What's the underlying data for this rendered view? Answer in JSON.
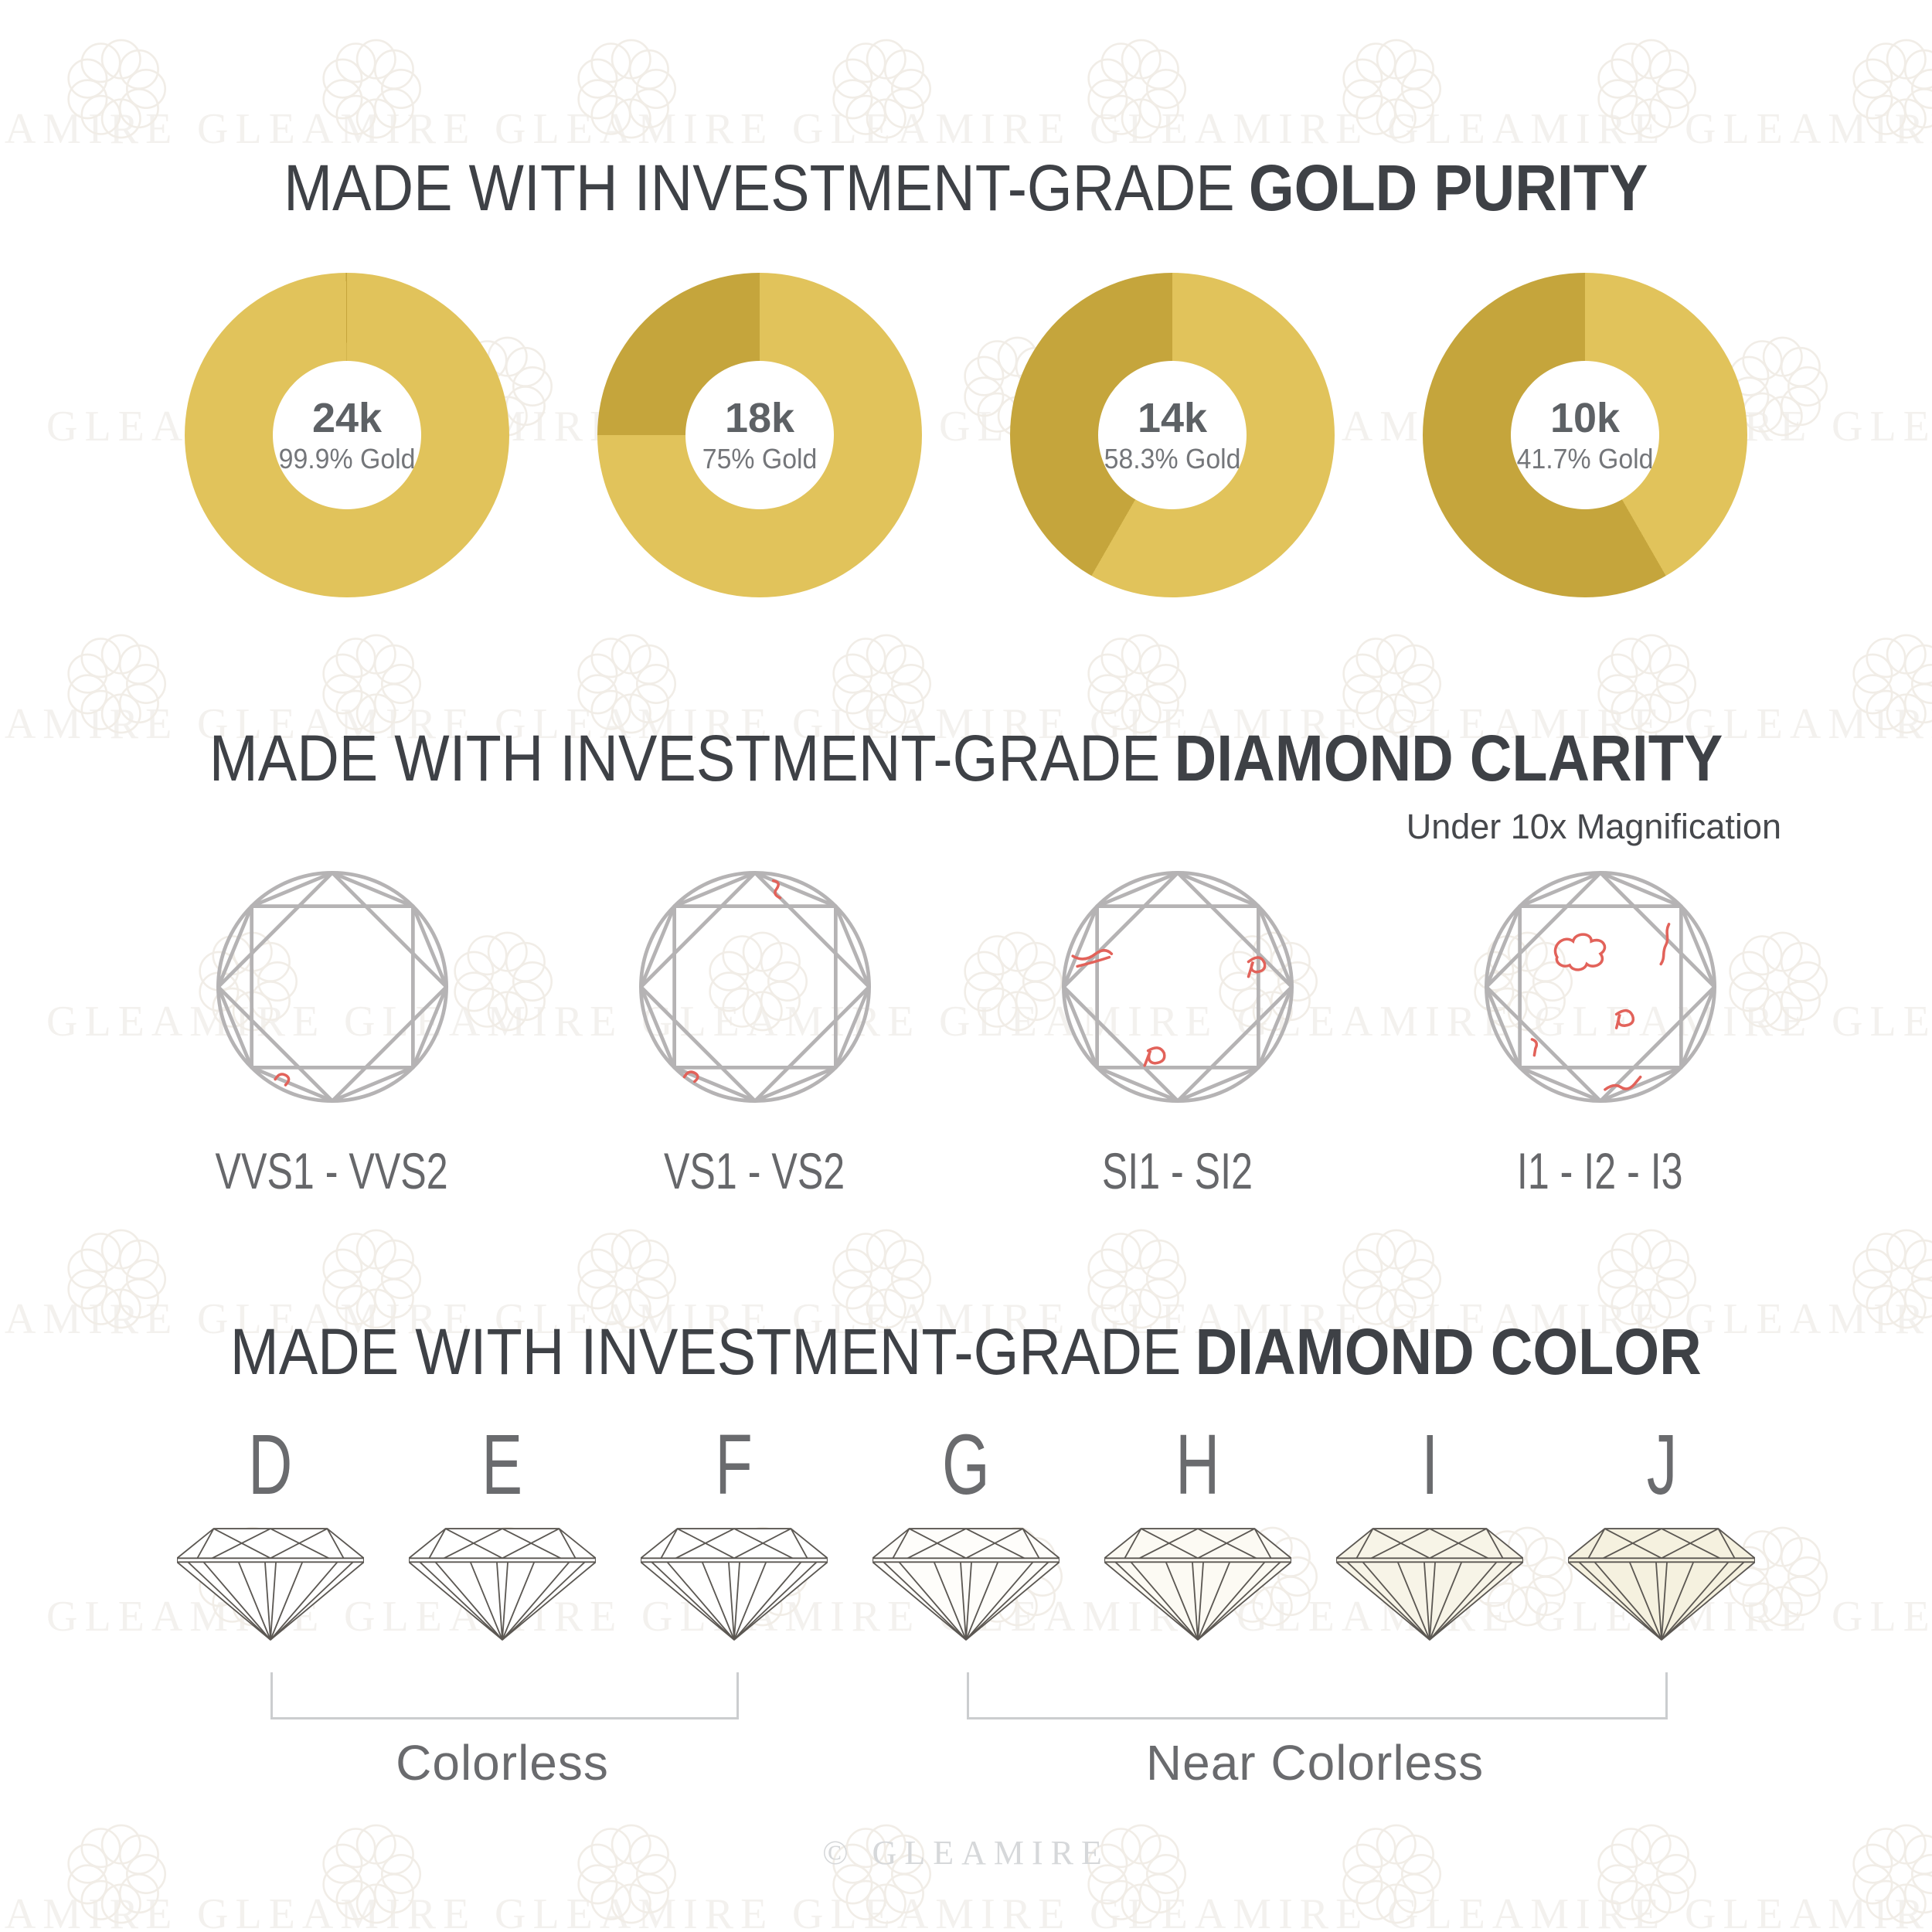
{
  "page": {
    "background": "#FFFFFF",
    "watermark_text": "GLEAMIRE",
    "footer": "© GLEAMIRE"
  },
  "gold_section": {
    "title_regular": "MADE WITH INVESTMENT-GRADE",
    "title_bold": "GOLD PURITY"
  },
  "clarity_section": {
    "title_regular": "MADE WITH INVESTMENT-GRADE",
    "title_bold": "DIAMOND CLARITY",
    "subtitle": "Under 10x Magnification",
    "line_color": "#B5B3B4",
    "inclusion_color": "#E2625A",
    "grades": [
      {
        "label": "VVS1 - VVS2",
        "inclusion_count": 1
      },
      {
        "label": "VS1 - VS2",
        "inclusion_count": 2
      },
      {
        "label": "SI1 - SI2",
        "inclusion_count": 3
      },
      {
        "label": "I1 - I2 - I3",
        "inclusion_count": 5
      }
    ]
  },
  "color_section": {
    "title_regular": "MADE WITH INVESTMENT-GRADE",
    "title_bold": "DIAMOND COLOR",
    "line_color": "#5B5752",
    "grades": [
      {
        "letter": "D",
        "tint": "#FFFFFF"
      },
      {
        "letter": "E",
        "tint": "#FFFFFF"
      },
      {
        "letter": "F",
        "tint": "#FFFFFF"
      },
      {
        "letter": "G",
        "tint": "#FEFDFA"
      },
      {
        "letter": "H",
        "tint": "#FCFAF3"
      },
      {
        "letter": "I",
        "tint": "#F7F4E7"
      },
      {
        "letter": "J",
        "tint": "#F5F1DF"
      }
    ],
    "groups": [
      {
        "label": "Colorless",
        "from": "D",
        "to": "F"
      },
      {
        "label": "Near Colorless",
        "from": "G",
        "to": "J"
      }
    ]
  },
  "chart_data": {
    "type": "pie",
    "title": "Made with investment-grade gold purity",
    "legend": "none",
    "grid": false,
    "colors": {
      "gold": "#E1C35B",
      "alloy": "#C5A53C"
    },
    "charts": [
      {
        "center_label": "24k",
        "sub_label": "99.9% Gold",
        "slices": [
          {
            "name": "gold",
            "value": 99.9
          },
          {
            "name": "alloy",
            "value": 0.1
          }
        ]
      },
      {
        "center_label": "18k",
        "sub_label": "75% Gold",
        "slices": [
          {
            "name": "gold",
            "value": 75
          },
          {
            "name": "alloy",
            "value": 25
          }
        ]
      },
      {
        "center_label": "14k",
        "sub_label": "58.3% Gold",
        "slices": [
          {
            "name": "gold",
            "value": 58.3
          },
          {
            "name": "alloy",
            "value": 41.7
          }
        ]
      },
      {
        "center_label": "10k",
        "sub_label": "41.7% Gold",
        "slices": [
          {
            "name": "gold",
            "value": 41.7
          },
          {
            "name": "alloy",
            "value": 58.3
          }
        ]
      }
    ]
  }
}
